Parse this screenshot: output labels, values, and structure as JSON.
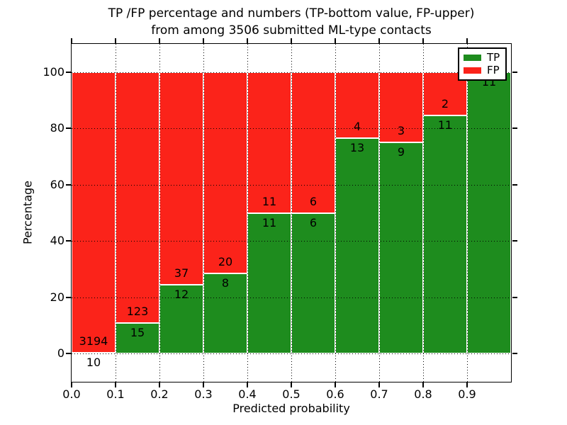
{
  "legend": {
    "items": [
      {
        "label": "TP",
        "color": "#1e8c1e"
      },
      {
        "label": "FP",
        "color": "#fb231a"
      }
    ]
  },
  "chart_data": {
    "type": "bar",
    "stacked": true,
    "title_line1": "TP /FP percentage and numbers (TP-bottom value, FP-upper)",
    "title_line2": "from among 3506 submitted ML-type contacts",
    "xlabel": "Predicted probability",
    "ylabel": "Percentage",
    "total_contacts": 3506,
    "bins": [
      "0.0-0.1",
      "0.1-0.2",
      "0.2-0.3",
      "0.3-0.4",
      "0.4-0.5",
      "0.5-0.6",
      "0.6-0.7",
      "0.7-0.8",
      "0.8-0.9",
      "0.9-1.0"
    ],
    "x_tick_labels": [
      "0.0",
      "0.1",
      "0.2",
      "0.3",
      "0.4",
      "0.5",
      "0.6",
      "0.7",
      "0.8",
      "0.9"
    ],
    "y_tick_labels": [
      "0",
      "20",
      "40",
      "60",
      "80",
      "100"
    ],
    "y_gridlines": [
      0,
      20,
      40,
      60,
      80,
      100
    ],
    "xlim": [
      0.0,
      1.0
    ],
    "ylim": [
      -10,
      110
    ],
    "grid": "dotted",
    "legend_position": "upper right",
    "series": [
      {
        "name": "TP",
        "color": "#1e8c1e",
        "counts": [
          10,
          15,
          12,
          8,
          11,
          6,
          13,
          9,
          11,
          11
        ]
      },
      {
        "name": "FP",
        "color": "#fb231a",
        "counts": [
          3194,
          123,
          37,
          20,
          11,
          6,
          4,
          3,
          2,
          0
        ]
      }
    ],
    "tp_percent_of_bin": [
      0.31,
      10.87,
      24.49,
      28.57,
      50.0,
      50.0,
      76.47,
      75.0,
      84.62,
      100.0
    ]
  }
}
